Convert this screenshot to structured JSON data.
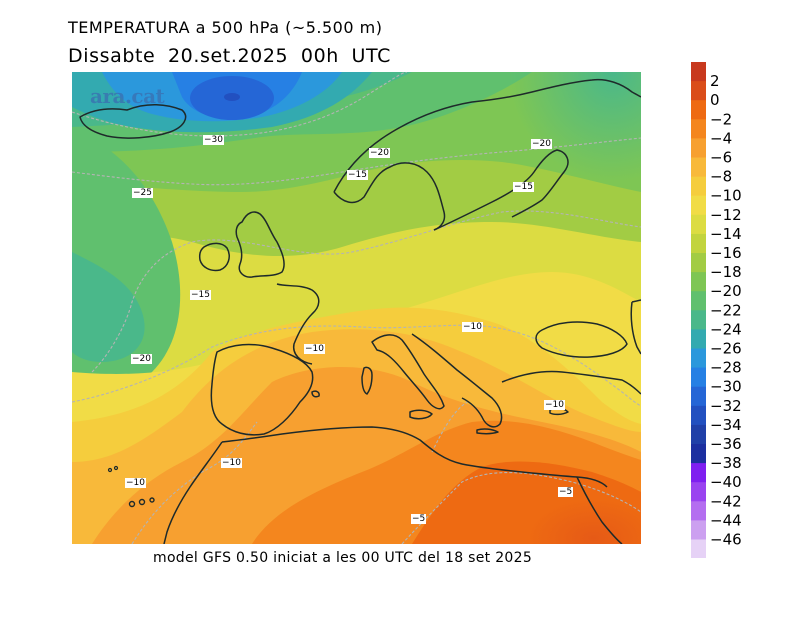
{
  "title_line1": "TEMPERATURA a 500 hPa (~5.500 m)",
  "title_line2": "Dissabte   20.set.2025 00h UTC",
  "footer": "model GFS 0.50 iniciat a les 00 UTC del 18 set 2025",
  "watermark": "ara.cat",
  "legend": {
    "labels": [
      "2",
      "0",
      "−2",
      "−4",
      "−6",
      "−8",
      "−10",
      "−12",
      "−14",
      "−16",
      "−18",
      "−20",
      "−22",
      "−24",
      "−26",
      "−28",
      "−30",
      "−32",
      "−34",
      "−36",
      "−38",
      "−40",
      "−42",
      "−44",
      "−46"
    ],
    "colors": [
      "#c8391e",
      "#da4d1a",
      "#ee6a12",
      "#f4861e",
      "#f7a030",
      "#f8b93a",
      "#f5cd3d",
      "#f1dc46",
      "#dcdc42",
      "#c2d43e",
      "#a2cc44",
      "#7ec654",
      "#60c06e",
      "#4ab88a",
      "#33aab0",
      "#2b98dc",
      "#2680e4",
      "#2566d6",
      "#2250c0",
      "#2040a8",
      "#1c2fa0",
      "#7f1ff0",
      "#9a44f0",
      "#b46ef0",
      "#cca0f0",
      "#e6d2f6"
    ]
  },
  "isotherm_labels": [
    {
      "text": "−30"
    },
    {
      "text": "−20"
    },
    {
      "text": "−20"
    },
    {
      "text": "−15"
    },
    {
      "text": "−15"
    },
    {
      "text": "−25"
    },
    {
      "text": "−15"
    },
    {
      "text": "−20"
    },
    {
      "text": "−10"
    },
    {
      "text": "−10"
    },
    {
      "text": "−10"
    },
    {
      "text": "−10"
    },
    {
      "text": "−10"
    },
    {
      "text": "−5"
    },
    {
      "text": "−5"
    }
  ]
}
